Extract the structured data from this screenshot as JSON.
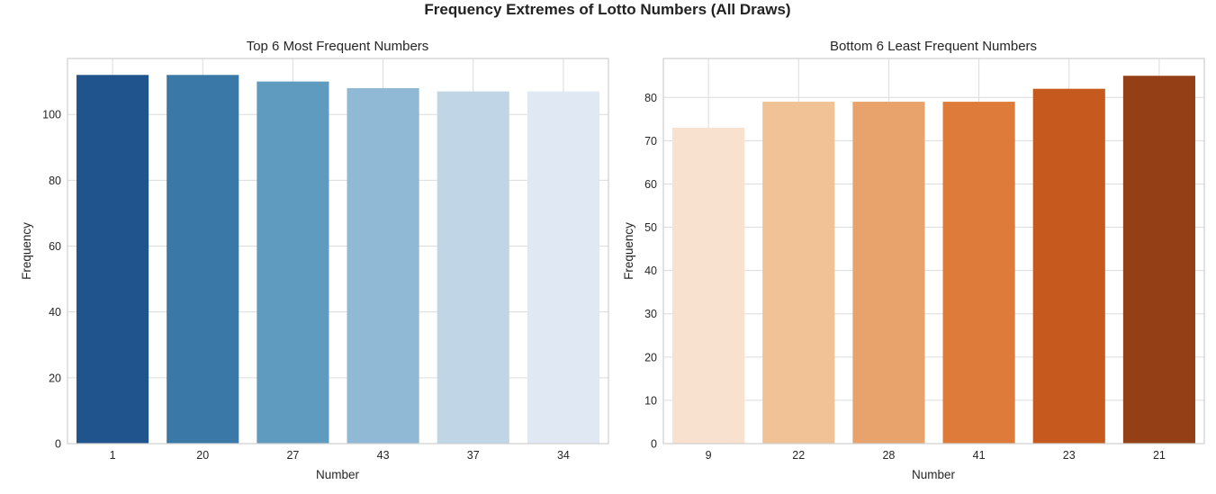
{
  "figure": {
    "title": "Frequency Extremes of Lotto Numbers (All Draws)"
  },
  "chart_data": [
    {
      "type": "bar",
      "title": "Top 6 Most Frequent Numbers",
      "xlabel": "Number",
      "ylabel": "Frequency",
      "categories": [
        "1",
        "20",
        "27",
        "43",
        "37",
        "34"
      ],
      "values": [
        112,
        112,
        110,
        108,
        107,
        107
      ],
      "ylim": [
        0,
        117
      ],
      "yticks": [
        0,
        20,
        40,
        60,
        80,
        100
      ],
      "grid": true,
      "colors": [
        "#1f548c",
        "#3a78a8",
        "#5f9abf",
        "#8fb9d5",
        "#c0d6e7",
        "#dfe8f3"
      ]
    },
    {
      "type": "bar",
      "title": "Bottom 6 Least Frequent Numbers",
      "xlabel": "Number",
      "ylabel": "Frequency",
      "categories": [
        "9",
        "22",
        "28",
        "41",
        "23",
        "21"
      ],
      "values": [
        73,
        79,
        79,
        79,
        82,
        85
      ],
      "ylim": [
        0,
        89
      ],
      "yticks": [
        0,
        10,
        20,
        30,
        40,
        50,
        60,
        70,
        80
      ],
      "grid": true,
      "colors": [
        "#f8e2cf",
        "#f0c295",
        "#e8a26b",
        "#de7b3b",
        "#c65a1e",
        "#953f16"
      ]
    }
  ]
}
